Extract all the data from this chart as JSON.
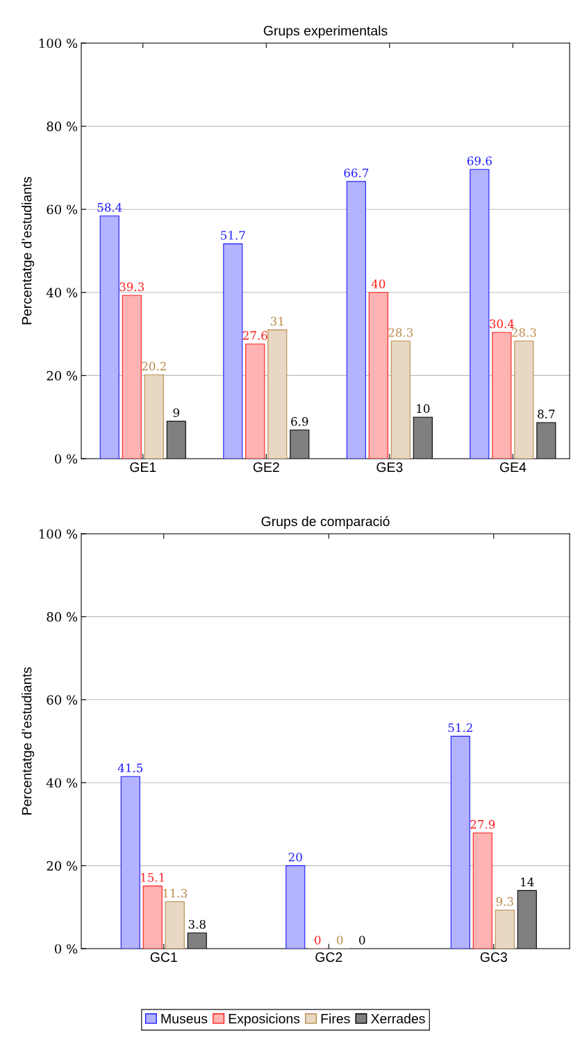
{
  "chart_data": [
    {
      "type": "bar",
      "title": "Grups experimentals",
      "ylabel": "Percentatge d’estudiants",
      "categories": [
        "GE1",
        "GE2",
        "GE3",
        "GE4"
      ],
      "series": [
        {
          "name": "Museus",
          "color": "#b3b3ff",
          "values": [
            58.4,
            51.7,
            66.7,
            69.6
          ]
        },
        {
          "name": "Exposicions",
          "color": "#ffb3b3",
          "values": [
            39.3,
            27.6,
            40,
            30.4
          ]
        },
        {
          "name": "Fires",
          "color": "#e8d8c3",
          "values": [
            20.2,
            31,
            28.3,
            28.3
          ]
        },
        {
          "name": "Xerrades",
          "color": "#808080",
          "values": [
            9,
            6.9,
            10,
            8.7
          ]
        }
      ],
      "ylim": [
        0,
        100
      ],
      "yticks": [
        {
          "value": 0,
          "label": "0 %"
        },
        {
          "value": 20,
          "label": "20 %"
        },
        {
          "value": 40,
          "label": "40 %"
        },
        {
          "value": 60,
          "label": "60 %"
        },
        {
          "value": 80,
          "label": "80 %"
        },
        {
          "value": 100,
          "label": "100 %"
        }
      ],
      "grid": "y",
      "data_labels": true,
      "legend": "bottom"
    },
    {
      "type": "bar",
      "title": "Grups de comparació",
      "ylabel": "Percentatge d’estudiants",
      "categories": [
        "GC1",
        "GC2",
        "GC3"
      ],
      "series": [
        {
          "name": "Museus",
          "color": "#b3b3ff",
          "values": [
            41.5,
            20,
            51.2
          ]
        },
        {
          "name": "Exposicions",
          "color": "#ffb3b3",
          "values": [
            15.1,
            0,
            27.9
          ]
        },
        {
          "name": "Fires",
          "color": "#e8d8c3",
          "values": [
            11.3,
            0,
            9.3
          ]
        },
        {
          "name": "Xerrades",
          "color": "#808080",
          "values": [
            3.8,
            0,
            14
          ]
        }
      ],
      "ylim": [
        0,
        100
      ],
      "yticks": [
        {
          "value": 0,
          "label": "0 %"
        },
        {
          "value": 20,
          "label": "20 %"
        },
        {
          "value": 40,
          "label": "40 %"
        },
        {
          "value": 60,
          "label": "60 %"
        },
        {
          "value": 80,
          "label": "80 %"
        },
        {
          "value": 100,
          "label": "100 %"
        }
      ],
      "grid": "y",
      "data_labels": true,
      "legend": "bottom"
    }
  ]
}
